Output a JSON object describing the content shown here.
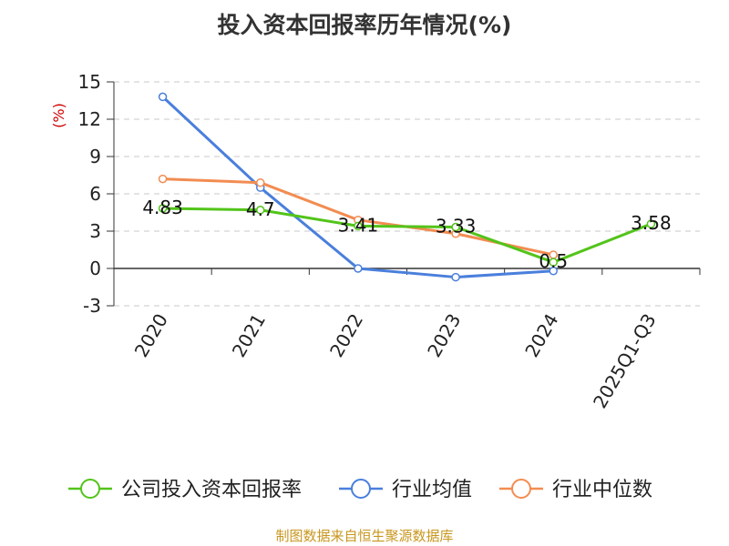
{
  "chart_data": {
    "type": "line",
    "title": "投入资本回报率历年情况(%)",
    "ylabel": "(%)",
    "xlabel": "",
    "categories": [
      "2020",
      "2021",
      "2022",
      "2023",
      "2024",
      "2025Q1-Q3"
    ],
    "ylim": [
      -3,
      15
    ],
    "yticks": [
      -3,
      0,
      3,
      6,
      9,
      12,
      15
    ],
    "grid": true,
    "legend_position": "bottom",
    "series": [
      {
        "name": "公司投入资本回报率",
        "color": "#52c41a",
        "values": [
          4.83,
          4.7,
          3.41,
          3.33,
          0.5,
          3.58
        ],
        "labels": [
          "4.83",
          "4.7",
          "3.41",
          "3.33",
          "0.5",
          "3.58"
        ]
      },
      {
        "name": "行业均值",
        "color": "#4a7fdc",
        "values": [
          13.8,
          6.5,
          0.0,
          -0.7,
          -0.2,
          null
        ]
      },
      {
        "name": "行业中位数",
        "color": "#f28c51",
        "values": [
          7.2,
          6.9,
          3.9,
          2.8,
          1.1,
          null
        ]
      }
    ]
  },
  "source": "制图数据来自恒生聚源数据库"
}
